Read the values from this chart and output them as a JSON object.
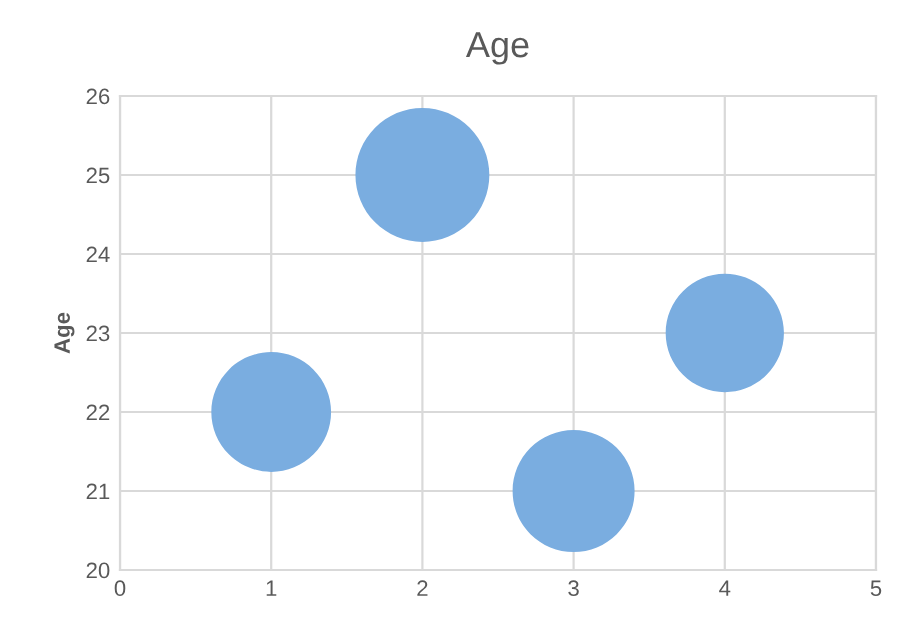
{
  "chart_data": {
    "type": "bubble",
    "title": "Age",
    "ylabel": "Age",
    "x": [
      1,
      2,
      3,
      4
    ],
    "series": [
      {
        "color": "#7aade0",
        "values": [
          22,
          25,
          21,
          23
        ],
        "sizes": [
          0.8,
          1,
          0.83,
          0.78
        ]
      }
    ],
    "xlim": [
      0,
      5
    ],
    "xticks": [
      0,
      1,
      2,
      3,
      4,
      5
    ],
    "ylim": [
      20,
      26
    ],
    "yticks": [
      20,
      21,
      22,
      23,
      24,
      25,
      26
    ],
    "grid": true,
    "legend": false
  }
}
